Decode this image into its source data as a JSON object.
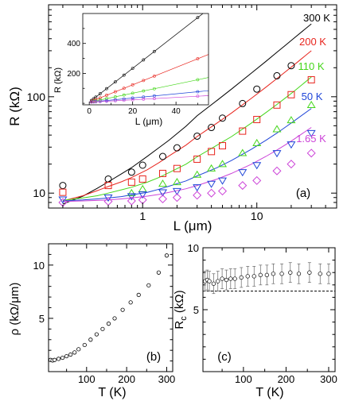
{
  "chart_data": [
    {
      "id": "a",
      "type": "scatter",
      "panel_label": "(a)",
      "xlabel": "L (μm)",
      "ylabel": "R (kΩ)",
      "xscale": "log",
      "yscale": "log",
      "xlim": [
        0.15,
        50
      ],
      "ylim": [
        7,
        900
      ],
      "xticks": [
        {
          "v": 1,
          "t": "1"
        },
        {
          "v": 10,
          "t": "10"
        }
      ],
      "yticks": [
        {
          "v": 10,
          "t": "10"
        },
        {
          "v": 100,
          "t": "100"
        }
      ],
      "series": [
        {
          "name": "300 K",
          "color": "#000000",
          "marker": "circle",
          "x": [
            0.2,
            0.5,
            0.8,
            1.0,
            1.5,
            2.0,
            3.0,
            4.0,
            5.0,
            7.5,
            10.0,
            15.0,
            20.0
          ],
          "y": [
            12.0,
            14.0,
            16.5,
            19.5,
            24.0,
            29.5,
            39.0,
            48.0,
            60.0,
            85.0,
            120.0,
            165.0,
            210.0
          ],
          "fit": [
            7.7,
            9.3,
            11.2,
            13.1,
            15.8,
            18.4,
            24.1,
            29.8,
            35.4,
            49.5,
            63.6,
            91.8,
            120.0,
            176.4,
            232.8,
            289.2,
            345.6,
            402.0,
            570.0
          ]
        },
        {
          "name": "200 K",
          "color": "#e8251e",
          "marker": "square",
          "x": [
            0.2,
            0.5,
            0.8,
            1.0,
            1.5,
            2.0,
            3.0,
            4.0,
            5.0,
            7.5,
            10.0,
            15.0,
            20.0,
            30.0
          ],
          "y": [
            10.2,
            12.0,
            13.0,
            14.0,
            16.0,
            18.0,
            22.5,
            27.0,
            31.0,
            44.0,
            58.0,
            82.0,
            105.0,
            150.0
          ],
          "fit": [
            8.3,
            9.4,
            10.6,
            11.7,
            13.1,
            14.5,
            17.5,
            20.8,
            24.3,
            31.5,
            38.7,
            53.5,
            67.8,
            96.6,
            125.5,
            154.4,
            183.3,
            212.1,
            300.0
          ]
        },
        {
          "name": "110 K",
          "color": "#44d61a",
          "marker": "triangle-up",
          "x": [
            0.8,
            1.0,
            1.5,
            2.0,
            3.0,
            4.0,
            5.0,
            7.5,
            10.0,
            15.0,
            20.0,
            30.0
          ],
          "y": [
            10.0,
            11.0,
            12.5,
            13.0,
            15.5,
            18.0,
            20.0,
            26.0,
            33.0,
            46.0,
            57.0,
            82.0
          ],
          "fit": [
            8.4,
            8.9,
            9.4,
            10.0,
            10.8,
            11.5,
            13.0,
            14.6,
            16.3,
            20.0,
            23.8,
            31.5,
            38.6,
            53.5,
            68.4,
            83.3,
            98.2,
            113.0,
            160.0
          ]
        },
        {
          "name": "50 K",
          "color": "#1f45d8",
          "marker": "triangle-down",
          "x": [
            0.2,
            0.5,
            0.8,
            1.0,
            1.5,
            2.0,
            3.0,
            4.0,
            5.0,
            7.5,
            10.0,
            15.0,
            20.0,
            30.0
          ],
          "y": [
            8.6,
            9.0,
            9.3,
            9.7,
            10.2,
            10.5,
            11.5,
            12.5,
            13.5,
            16.5,
            19.5,
            26.0,
            32.0,
            42.0
          ],
          "fit": [
            8.3,
            8.5,
            8.7,
            8.9,
            9.2,
            9.6,
            10.2,
            11.0,
            11.8,
            13.4,
            15.1,
            18.4,
            21.8,
            28.6,
            35.3,
            42.0,
            48.8,
            55.6,
            75.5
          ]
        },
        {
          "name": "1.65 K",
          "color": "#cc44d8",
          "marker": "diamond",
          "x": [
            0.2,
            0.5,
            0.8,
            1.0,
            1.5,
            2.0,
            3.0,
            4.0,
            5.0,
            7.5,
            10.0,
            15.0,
            20.0,
            30.0
          ],
          "y": [
            8.0,
            8.2,
            8.3,
            8.5,
            8.7,
            9.0,
            9.5,
            10.0,
            10.5,
            12.0,
            13.5,
            17.0,
            20.0,
            26.0
          ],
          "fit": [
            8.2,
            8.3,
            8.4,
            8.5,
            8.7,
            8.9,
            9.3,
            9.7,
            10.2,
            11.1,
            12.0,
            14.0,
            16.0,
            20.0,
            24.0,
            28.0,
            32.0,
            36.0,
            48.0
          ]
        }
      ],
      "fit_x": [
        0.2,
        0.3,
        0.4,
        0.5,
        0.65,
        0.8,
        1.1,
        1.4,
        1.7,
        2.4,
        3.0,
        4.5,
        6.0,
        9.0,
        12.0,
        15.0,
        18.0,
        21.0,
        30.0
      ]
    },
    {
      "id": "a-inset",
      "type": "scatter",
      "xlabel": "L (μm)",
      "ylabel": "R (kΩ)",
      "xlim": [
        -3,
        55
      ],
      "ylim": [
        -10,
        600
      ],
      "xticks": [
        {
          "v": 0,
          "t": "0"
        },
        {
          "v": 20,
          "t": "20"
        },
        {
          "v": 40,
          "t": "40"
        }
      ],
      "yticks": [
        {
          "v": 200,
          "t": "200"
        },
        {
          "v": 400,
          "t": "400"
        }
      ],
      "lines": [
        {
          "color": "#000000",
          "slope": 11.3,
          "intercept": 7.5
        },
        {
          "color": "#e8251e",
          "slope": 5.8,
          "intercept": 7.5
        },
        {
          "color": "#44d61a",
          "slope": 3.0,
          "intercept": 7.5
        },
        {
          "color": "#1f45d8",
          "slope": 1.4,
          "intercept": 7.5
        },
        {
          "color": "#cc44d8",
          "slope": 0.8,
          "intercept": 7.5
        }
      ],
      "point_x": [
        1,
        2,
        3,
        5,
        8,
        12,
        16,
        20,
        25,
        30,
        50
      ]
    },
    {
      "id": "b",
      "type": "scatter",
      "panel_label": "(b)",
      "xlabel": "T (K)",
      "ylabel": "ρ (kΩ/μm)",
      "xlim": [
        5,
        315
      ],
      "ylim": [
        0,
        12
      ],
      "xticks": [
        {
          "v": 100,
          "t": "100"
        },
        {
          "v": 200,
          "t": "200"
        },
        {
          "v": 300,
          "t": "300"
        }
      ],
      "yticks": [
        {
          "v": 5,
          "t": "5"
        },
        {
          "v": 10,
          "t": "10"
        }
      ],
      "x": [
        10,
        15,
        20,
        30,
        40,
        50,
        60,
        70,
        80,
        95,
        110,
        125,
        140,
        155,
        170,
        190,
        210,
        230,
        255,
        280,
        300
      ],
      "y": [
        1.1,
        1.05,
        1.1,
        1.2,
        1.3,
        1.45,
        1.6,
        1.8,
        2.1,
        2.5,
        3.0,
        3.5,
        4.0,
        4.5,
        5.0,
        5.8,
        6.5,
        7.2,
        8.1,
        9.3,
        10.9
      ]
    },
    {
      "id": "c",
      "type": "scatter",
      "panel_label": "(c)",
      "xlabel": "T (K)",
      "ylabel": "R_c (kΩ)",
      "xlim": [
        5,
        315
      ],
      "ylim": [
        0,
        10
      ],
      "xticks": [
        {
          "v": 100,
          "t": "100"
        },
        {
          "v": 200,
          "t": "200"
        },
        {
          "v": 300,
          "t": "300"
        }
      ],
      "yticks": [
        {
          "v": 5,
          "t": "5"
        },
        {
          "v": 10,
          "t": "10"
        }
      ],
      "reference_line": 6.5,
      "x": [
        10,
        15,
        20,
        30,
        40,
        50,
        60,
        70,
        80,
        95,
        110,
        125,
        140,
        155,
        170,
        190,
        210,
        230,
        255,
        280,
        300
      ],
      "y": [
        7.3,
        7.4,
        7.3,
        7.1,
        7.3,
        7.5,
        7.4,
        7.5,
        7.5,
        7.6,
        7.7,
        7.7,
        7.8,
        7.8,
        7.9,
        7.9,
        8.0,
        7.9,
        8.0,
        7.9,
        7.9
      ],
      "err": [
        0.8,
        0.8,
        0.8,
        0.8,
        0.8,
        0.8,
        0.8,
        0.8,
        0.8,
        0.8,
        0.8,
        0.8,
        0.8,
        0.8,
        0.8,
        0.8,
        0.8,
        0.8,
        0.8,
        0.8,
        0.8
      ]
    }
  ]
}
